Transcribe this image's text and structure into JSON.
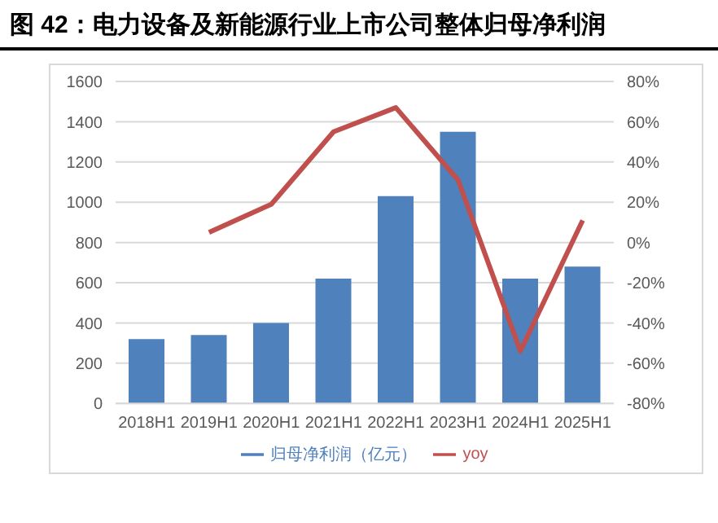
{
  "chart_data": {
    "type": "bar",
    "title": "图 42：电力设备及新能源行业上市公司整体归母净利润",
    "categories": [
      "2018H1",
      "2019H1",
      "2020H1",
      "2021H1",
      "2022H1",
      "2023H1",
      "2024H1",
      "2025H1"
    ],
    "series": [
      {
        "name": "归母净利润（亿元）",
        "color": "#4f81bd",
        "values": [
          320,
          340,
          400,
          620,
          1030,
          1350,
          620,
          680
        ]
      },
      {
        "name": "yoy",
        "type": "line",
        "axis": "y2",
        "color": "#c0504d",
        "values": [
          null,
          5,
          19,
          55,
          67,
          31,
          -54,
          11
        ]
      }
    ],
    "ylim": [
      0,
      1600
    ],
    "yticks": [
      0,
      200,
      400,
      600,
      800,
      1000,
      1200,
      1400,
      1600
    ],
    "y2lim": [
      -80,
      80
    ],
    "y2ticks": [
      {
        "value": -80,
        "label": "-80%"
      },
      {
        "value": -60,
        "label": "-60%"
      },
      {
        "value": -40,
        "label": "-40%"
      },
      {
        "value": -20,
        "label": "-20%"
      },
      {
        "value": 0,
        "label": "0%"
      },
      {
        "value": 20,
        "label": "20%"
      },
      {
        "value": 40,
        "label": "40%"
      },
      {
        "value": 60,
        "label": "60%"
      },
      {
        "value": 80,
        "label": "80%"
      }
    ],
    "grid": "y",
    "legend": "bottom",
    "marker": "none",
    "line_style": "solid"
  }
}
